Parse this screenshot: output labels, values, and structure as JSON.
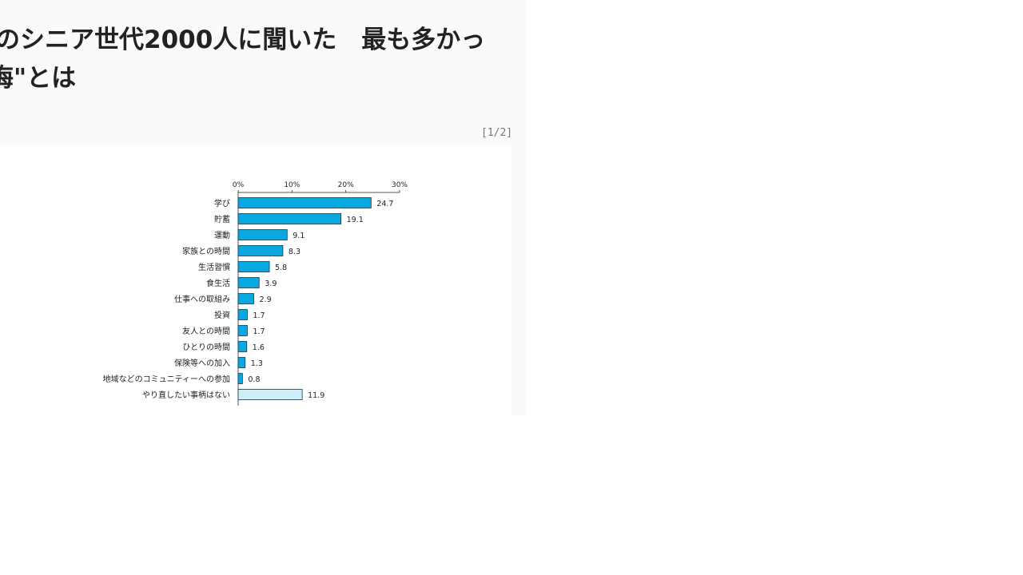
{
  "article": {
    "title_line1": "のシニア世代2000人に聞いた　最も多かっ",
    "title_line2": "悔\"とは",
    "pager": "[1/2]"
  },
  "chart_data": {
    "type": "bar",
    "orientation": "horizontal",
    "categories": [
      "学び",
      "貯蓄",
      "運動",
      "家族との時間",
      "生活習慣",
      "食生活",
      "仕事への取組み",
      "投資",
      "友人との時間",
      "ひとりの時間",
      "保険等への加入",
      "地域などのコミュニティーへの参加",
      "やり直したい事柄はない"
    ],
    "values": [
      24.7,
      19.1,
      9.1,
      8.3,
      5.8,
      3.9,
      2.9,
      1.7,
      1.7,
      1.6,
      1.3,
      0.8,
      11.9
    ],
    "xticks": [
      "0%",
      "10%",
      "20%",
      "30%"
    ],
    "xlim": [
      0,
      30
    ],
    "axis_position": "top",
    "colors": {
      "bar": "#0aa8e0",
      "bar_last": "#cdeef8",
      "edge": "#1a3550"
    }
  }
}
